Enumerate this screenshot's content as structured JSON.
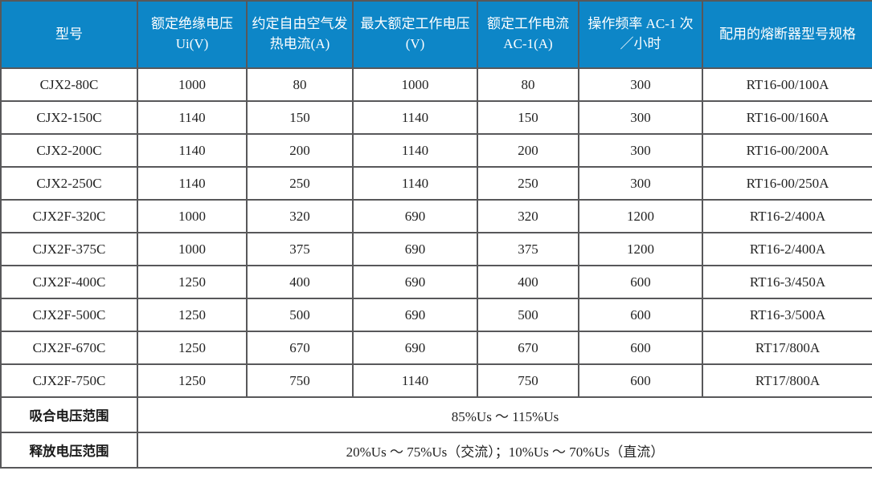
{
  "table": {
    "headers": [
      "型号",
      "额定绝缘电压 Ui(V)",
      "约定自由空气发热电流(A)",
      "最大额定工作电压(V)",
      "额定工作电流 AC-1(A)",
      "操作频率 AC-1 次／小时",
      "配用的熔断器型号规格"
    ],
    "rows": [
      [
        "CJX2-80C",
        "1000",
        "80",
        "1000",
        "80",
        "300",
        "RT16-00/100A"
      ],
      [
        "CJX2-150C",
        "1140",
        "150",
        "1140",
        "150",
        "300",
        "RT16-00/160A"
      ],
      [
        "CJX2-200C",
        "1140",
        "200",
        "1140",
        "200",
        "300",
        "RT16-00/200A"
      ],
      [
        "CJX2-250C",
        "1140",
        "250",
        "1140",
        "250",
        "300",
        "RT16-00/250A"
      ],
      [
        "CJX2F-320C",
        "1000",
        "320",
        "690",
        "320",
        "1200",
        "RT16-2/400A"
      ],
      [
        "CJX2F-375C",
        "1000",
        "375",
        "690",
        "375",
        "1200",
        "RT16-2/400A"
      ],
      [
        "CJX2F-400C",
        "1250",
        "400",
        "690",
        "400",
        "600",
        "RT16-3/450A"
      ],
      [
        "CJX2F-500C",
        "1250",
        "500",
        "690",
        "500",
        "600",
        "RT16-3/500A"
      ],
      [
        "CJX2F-670C",
        "1250",
        "670",
        "690",
        "670",
        "600",
        "RT17/800A"
      ],
      [
        "CJX2F-750C",
        "1250",
        "750",
        "1140",
        "750",
        "600",
        "RT17/800A"
      ]
    ],
    "footer_rows": [
      {
        "label": "吸合电压范围",
        "value": "85%Us ～ 115%Us"
      },
      {
        "label": "释放电压范围",
        "value": "20%Us ～ 75%Us（交流）；10%Us ～ 70%Us（直流）"
      }
    ]
  },
  "colors": {
    "header_bg": "#0d86c7",
    "header_text": "#ffffff",
    "grid_border": "#58585a",
    "outer_border": "#454545",
    "body_text": "#222222",
    "row_bg": "#ffffff"
  }
}
